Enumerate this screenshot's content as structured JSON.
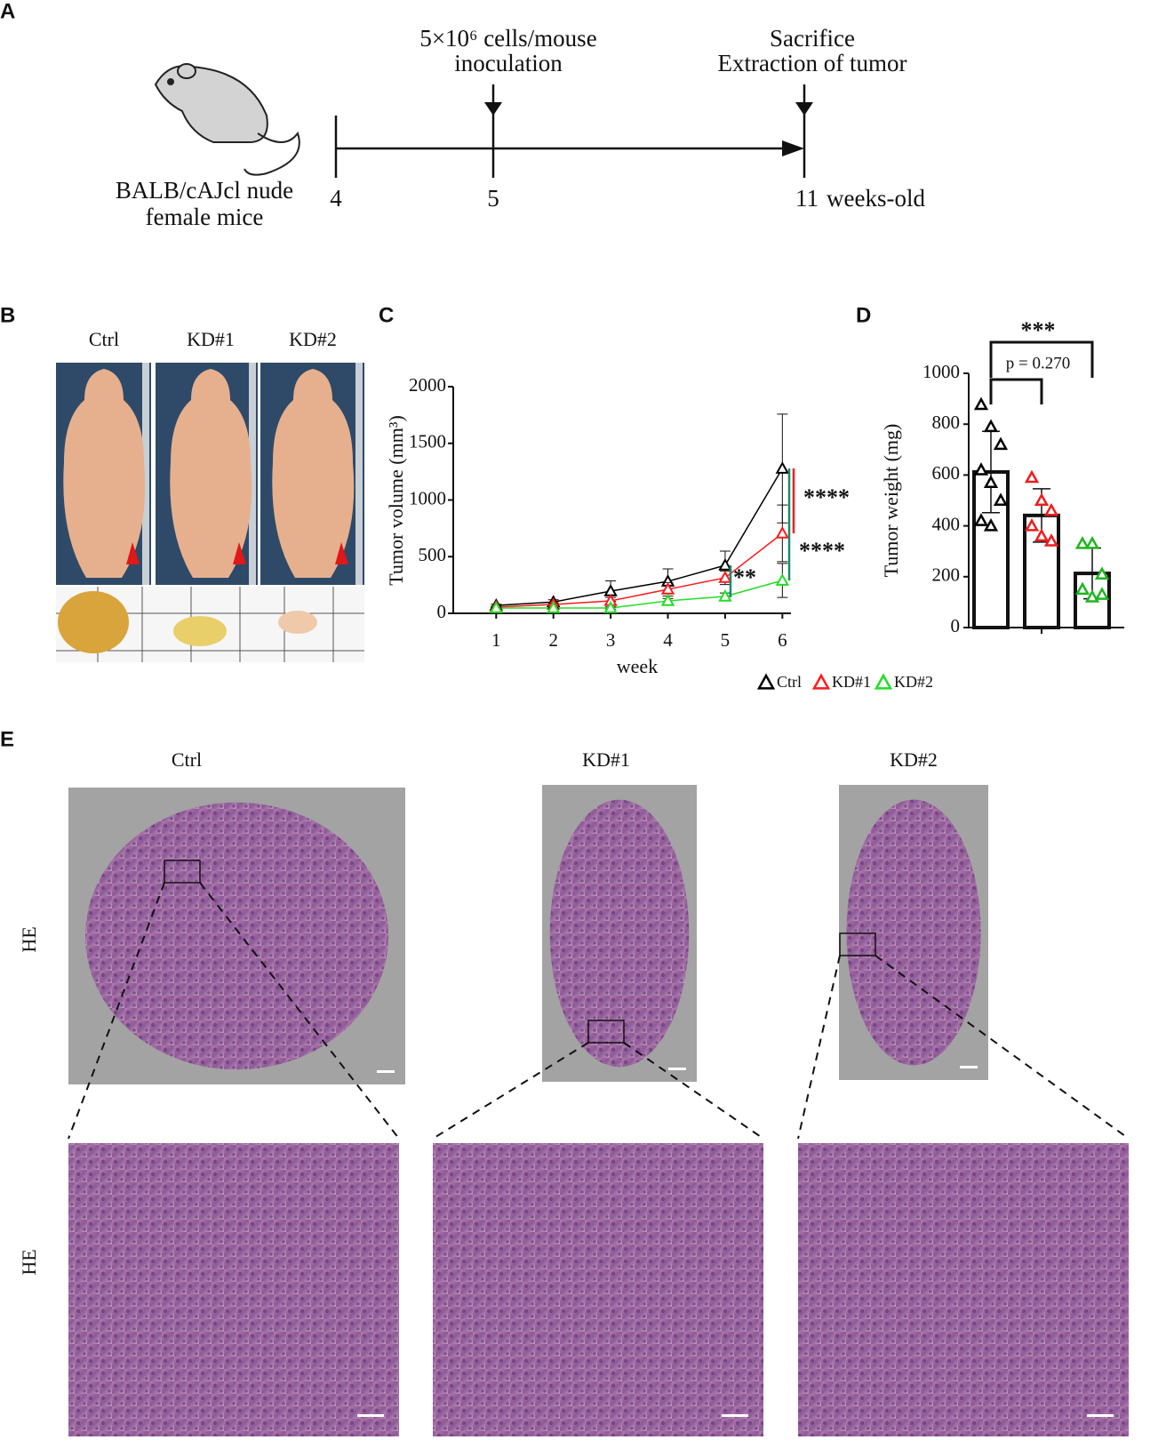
{
  "panels": [
    "A",
    "B",
    "C",
    "D",
    "E"
  ],
  "timeline": {
    "subject": [
      "BALB/cAJcl nude",
      "female mice"
    ],
    "events": [
      [
        "5×10⁶ cells/mouse",
        "inoculation"
      ],
      [
        "Sacrifice",
        "Extraction of tumor"
      ]
    ],
    "ticks": [
      "4",
      "5",
      "11"
    ],
    "unit": "weeks-old"
  },
  "photos": {
    "labels": [
      "Ctrl",
      "KD#1",
      "KD#2"
    ]
  },
  "chart_data": [
    {
      "type": "line",
      "xlabel": "week",
      "ylabel": "Tumor volume (mm³)",
      "x": [
        1,
        2,
        3,
        4,
        5,
        6
      ],
      "xlim": [
        0.25,
        6.15
      ],
      "xticks": [
        1,
        2,
        3,
        4,
        5,
        6
      ],
      "ylim": [
        0,
        2000
      ],
      "yticks": [
        0,
        500,
        1000,
        1500,
        2000
      ],
      "legend": "lower right",
      "series": [
        {
          "name": "Ctrl",
          "color": "#000000",
          "values": [
            70,
            100,
            196,
            282,
            424,
            1278
          ],
          "errors": [
            10,
            20,
            90,
            110,
            125,
            480
          ]
        },
        {
          "name": "KD#1",
          "color": "#ff1a1a",
          "values": [
            55,
            78,
            110,
            212,
            314,
            706
          ],
          "errors": [
            8,
            15,
            30,
            60,
            60,
            250
          ]
        },
        {
          "name": "KD#2",
          "color": "#22dd22",
          "values": [
            47,
            47,
            47,
            110,
            149,
            290
          ],
          "errors": [
            5,
            5,
            10,
            20,
            30,
            150
          ]
        }
      ],
      "annotations": [
        {
          "text": "****",
          "color": "#ff1a1a"
        },
        {
          "text": "****",
          "color": "#1a8a6e"
        },
        {
          "text": "**",
          "color": "#1a8a6e"
        }
      ]
    },
    {
      "type": "bar",
      "ylabel": "Tumor weight  (mg)",
      "categories": [
        null,
        null,
        null
      ],
      "values": [
        612,
        441,
        213
      ],
      "errors": [
        160,
        105,
        100
      ],
      "colors": [
        "#000000",
        "#ee1c1c",
        "#1fb51f"
      ],
      "points": [
        [
          877,
          790,
          720,
          620,
          570,
          500,
          420,
          400
        ],
        [
          590,
          500,
          460,
          400,
          360,
          340
        ],
        [
          330,
          330,
          210,
          150,
          120,
          130
        ]
      ],
      "ylim": [
        0,
        1000
      ],
      "yticks": [
        0,
        200,
        400,
        600,
        800,
        1000
      ],
      "annotations": [
        "***",
        "p = 0.270"
      ]
    }
  ],
  "histology": {
    "labels": [
      "Ctrl",
      "KD#1",
      "KD#2"
    ],
    "stain": [
      "HE",
      "HE"
    ]
  }
}
